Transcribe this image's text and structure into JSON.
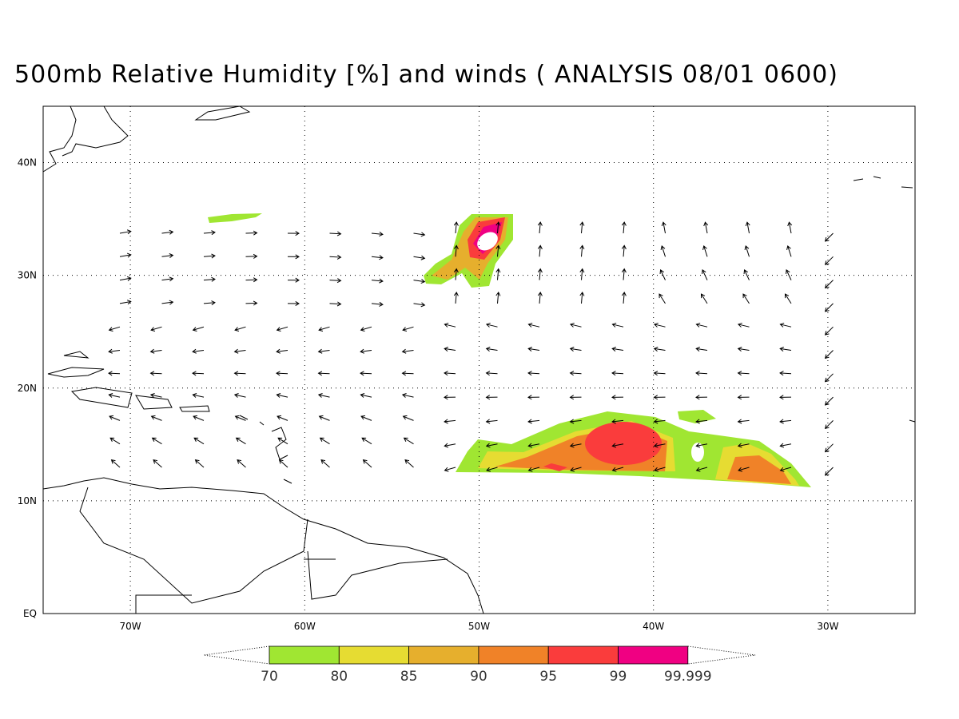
{
  "title": "500mb Relative Humidity [%] and winds ( ANALYSIS 08/01 0600)",
  "map": {
    "lon_lim": [
      -75,
      -25
    ],
    "lat_lim": [
      0,
      45
    ],
    "lon_ticks": [
      {
        "value": -70,
        "label": "70W"
      },
      {
        "value": -60,
        "label": "60W"
      },
      {
        "value": -50,
        "label": "50W"
      },
      {
        "value": -40,
        "label": "40W"
      },
      {
        "value": -30,
        "label": "30W"
      }
    ],
    "lat_ticks": [
      {
        "value": 0,
        "label": "EQ"
      },
      {
        "value": 10,
        "label": "10N"
      },
      {
        "value": 20,
        "label": "20N"
      },
      {
        "value": 30,
        "label": "30N"
      },
      {
        "value": 40,
        "label": "40N"
      }
    ]
  },
  "colorbar": {
    "levels": [
      70,
      80,
      85,
      90,
      95,
      99,
      99.999
    ],
    "colors": [
      "#a0e632",
      "#e6dc32",
      "#e6af2d",
      "#f08228",
      "#fa3c3c",
      "#f00082"
    ]
  }
}
